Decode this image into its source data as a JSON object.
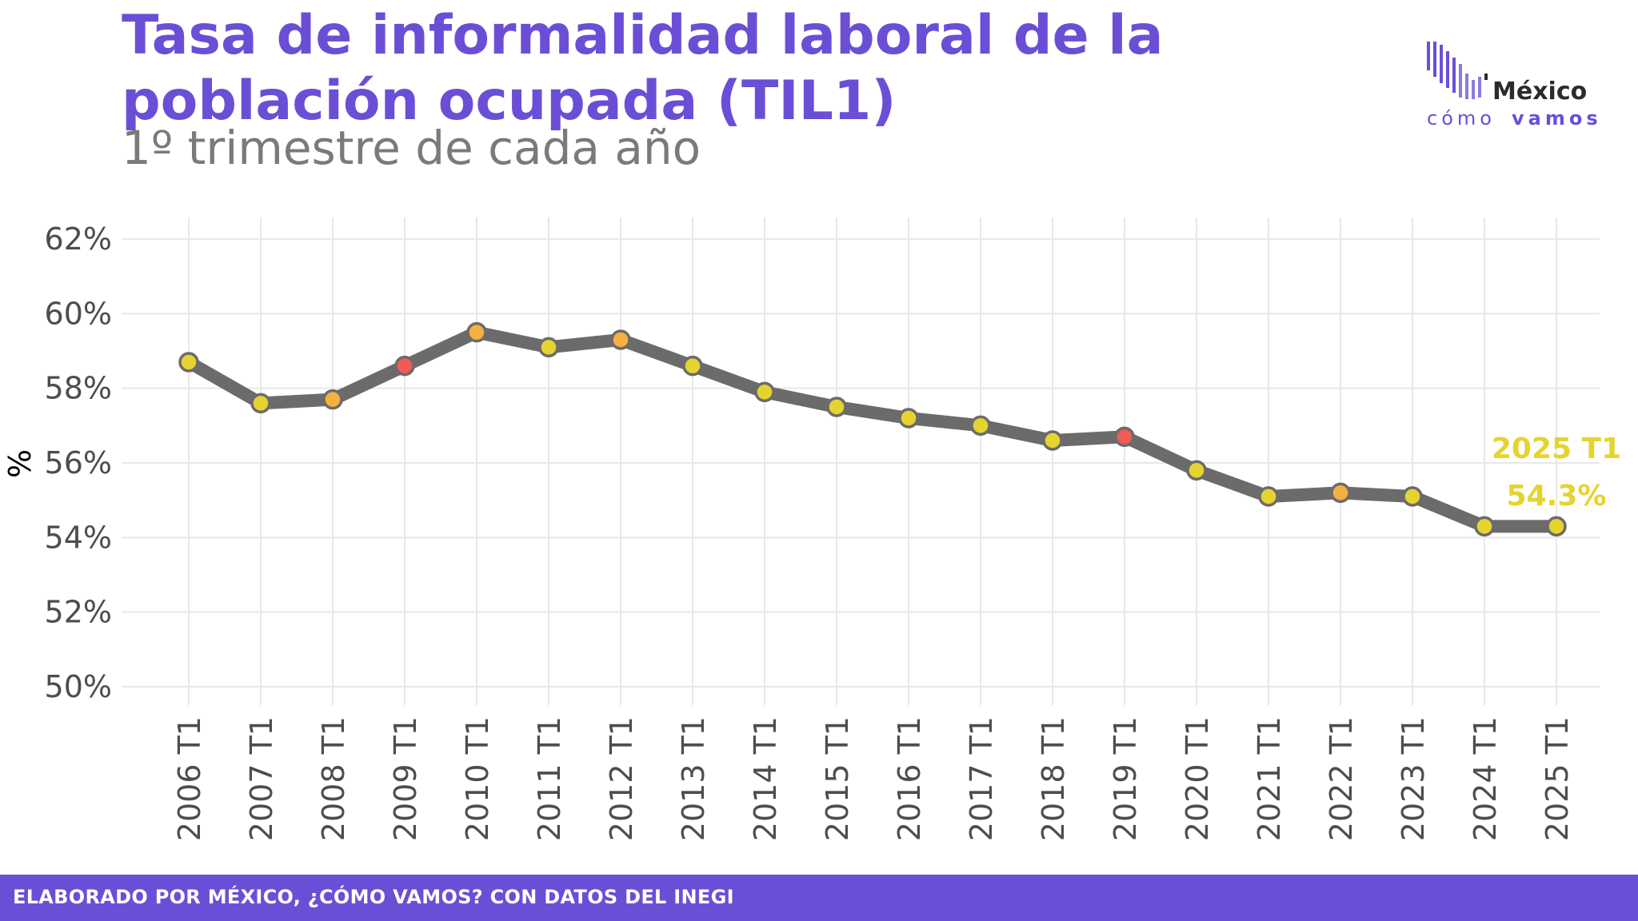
{
  "header": {
    "title": "Tasa de informalidad laboral de la población ocupada (TIL1)",
    "subtitle": "1º trimestre de cada año"
  },
  "logo": {
    "line1": "México",
    "line2_a": "cómo",
    "line2_b": "vamos",
    "bar_color": "#6a4fd6",
    "text_color": "#2b2b2b"
  },
  "footer": {
    "text": "ELABORADO POR MÉXICO, ¿CÓMO VAMOS? CON DATOS DEL INEGI",
    "color": "#6a4fd6"
  },
  "chart_data": {
    "type": "line",
    "title": "Tasa de informalidad laboral de la población ocupada (TIL1)",
    "subtitle": "1º trimestre de cada año",
    "xlabel": "",
    "ylabel": "%",
    "ylim": [
      50,
      62
    ],
    "yticks": [
      50,
      52,
      54,
      56,
      58,
      60,
      62
    ],
    "ytick_labels": [
      "50%",
      "52%",
      "54%",
      "56%",
      "58%",
      "60%",
      "62%"
    ],
    "grid": true,
    "line_color": "#6b6b6b",
    "categories": [
      "2006 T1",
      "2007 T1",
      "2008 T1",
      "2009 T1",
      "2010 T1",
      "2011 T1",
      "2012 T1",
      "2013 T1",
      "2014 T1",
      "2015 T1",
      "2016 T1",
      "2017 T1",
      "2018 T1",
      "2019 T1",
      "2020 T1",
      "2021 T1",
      "2022 T1",
      "2023 T1",
      "2024 T1",
      "2025 T1"
    ],
    "series": [
      {
        "values": [
          58.7,
          57.6,
          57.7,
          58.6,
          59.5,
          59.1,
          59.3,
          58.6,
          57.9,
          57.5,
          57.2,
          57.0,
          56.6,
          56.7,
          55.8,
          55.1,
          55.2,
          55.1,
          54.3,
          54.3
        ],
        "marker_colors": [
          "#e6d330",
          "#e6d330",
          "#f5b041",
          "#f25a55",
          "#f5b041",
          "#e6d330",
          "#f5b041",
          "#e6d330",
          "#e6d330",
          "#e6d330",
          "#e6d330",
          "#e6d330",
          "#e6d330",
          "#f25a55",
          "#e6d330",
          "#e6d330",
          "#f5b041",
          "#e6d330",
          "#e6d330",
          "#e6d330"
        ]
      }
    ],
    "annotation": {
      "label": "2025 T1",
      "value": "54.3%",
      "color": "#e6d330"
    }
  }
}
